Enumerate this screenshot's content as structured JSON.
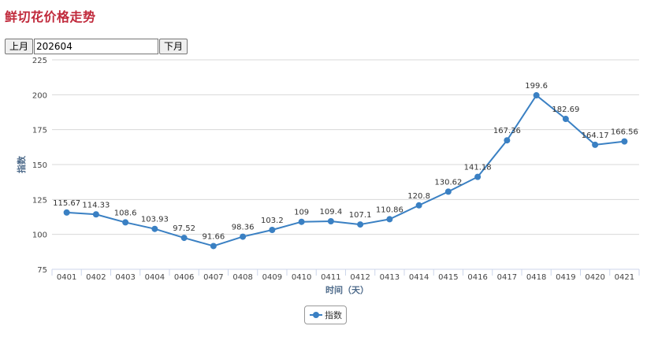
{
  "page": {
    "title": "鲜切花价格走势"
  },
  "controls": {
    "prev_label": "上月",
    "month_value": "202604",
    "next_label": "下月"
  },
  "colors": {
    "title": "#c0293b",
    "series": "#3a80c3",
    "grid": "#d8d8d8",
    "axis_text": "#444444"
  },
  "chart_data": {
    "type": "line",
    "title": "",
    "xlabel": "时间（天）",
    "ylabel": "指数",
    "ylim": [
      75,
      225
    ],
    "yticks": [
      75,
      100,
      125,
      150,
      175,
      200,
      225
    ],
    "grid": true,
    "legend_position": "bottom-center",
    "categories": [
      "0401",
      "0402",
      "0403",
      "0404",
      "0406",
      "0407",
      "0408",
      "0409",
      "0410",
      "0411",
      "0412",
      "0413",
      "0414",
      "0415",
      "0416",
      "0417",
      "0418",
      "0419",
      "0420",
      "0421"
    ],
    "series": [
      {
        "name": "指数",
        "values": [
          115.67,
          114.33,
          108.6,
          103.93,
          97.52,
          91.66,
          98.36,
          103.2,
          109,
          109.4,
          107.1,
          110.86,
          120.8,
          130.62,
          141.18,
          167.36,
          199.6,
          182.69,
          164.17,
          166.56
        ],
        "labels": [
          "115.67",
          "114.33",
          "108.6",
          "103.93",
          "97.52",
          "91.66",
          "98.36",
          "103.2",
          "109",
          "109.4",
          "107.1",
          "110.86",
          "120.8",
          "130.62",
          "141.18",
          "167.36",
          "199.6",
          "182.69",
          "164.17",
          "166.56"
        ]
      }
    ]
  }
}
